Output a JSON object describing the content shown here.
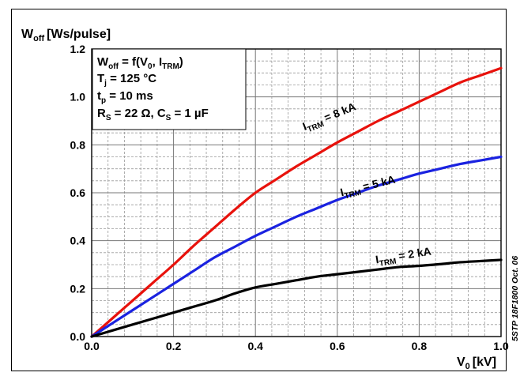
{
  "chart_data": {
    "type": "line",
    "title": "",
    "ylabel": "W",
    "ylabel_sub": "off",
    "ylabel_unit": "[Ws/pulse]",
    "xlabel": "V",
    "xlabel_sub": "0",
    "xlabel_unit": "[kV]",
    "xlim": [
      0.0,
      1.0
    ],
    "ylim": [
      0.0,
      1.2
    ],
    "x_ticks": [
      "0.0",
      "0.2",
      "0.4",
      "0.6",
      "0.8",
      "1.0"
    ],
    "y_ticks": [
      "0.0",
      "0.2",
      "0.4",
      "0.6",
      "0.8",
      "1.0",
      "1.2"
    ],
    "grid": true,
    "legend_box": {
      "line1": "W",
      "line1_sub": "off",
      "line1_rest": " = f(V",
      "line1_sub2": "0",
      "line1_rest2": ", I",
      "line1_sub3": "TRM",
      "line1_end": ")",
      "line2": "T",
      "line2_sub": "j",
      "line2_rest": " = 125 °C",
      "line3": "t",
      "line3_sub": "p",
      "line3_rest": " = 10 ms",
      "line4": "R",
      "line4_sub": "S",
      "line4_rest": " = 22 Ω, C",
      "line4_sub2": "S",
      "line4_rest2": " = 1 µF"
    },
    "watermark": "5STP 18F1800 Oct. 06",
    "series": [
      {
        "name": "I",
        "name_sub": "TRM",
        "name_rest": " = 8 kA",
        "color": "#e8120c",
        "x": [
          0.0,
          0.05,
          0.1,
          0.15,
          0.2,
          0.25,
          0.3,
          0.35,
          0.4,
          0.45,
          0.5,
          0.55,
          0.6,
          0.65,
          0.7,
          0.75,
          0.8,
          0.85,
          0.9,
          0.95,
          1.0
        ],
        "y": [
          0.0,
          0.075,
          0.15,
          0.225,
          0.3,
          0.38,
          0.455,
          0.53,
          0.6,
          0.655,
          0.71,
          0.76,
          0.81,
          0.855,
          0.9,
          0.94,
          0.98,
          1.02,
          1.06,
          1.09,
          1.12
        ]
      },
      {
        "name": "I",
        "name_sub": "TRM",
        "name_rest": " = 5 kA",
        "color": "#1a22e0",
        "x": [
          0.0,
          0.05,
          0.1,
          0.15,
          0.2,
          0.25,
          0.3,
          0.35,
          0.4,
          0.45,
          0.5,
          0.55,
          0.6,
          0.65,
          0.7,
          0.75,
          0.8,
          0.85,
          0.9,
          0.95,
          1.0
        ],
        "y": [
          0.0,
          0.055,
          0.11,
          0.165,
          0.22,
          0.275,
          0.33,
          0.375,
          0.42,
          0.46,
          0.5,
          0.535,
          0.57,
          0.6,
          0.63,
          0.655,
          0.68,
          0.7,
          0.72,
          0.735,
          0.75
        ]
      },
      {
        "name": "I",
        "name_sub": "TRM",
        "name_rest": " = 2 kA",
        "color": "#000000",
        "x": [
          0.0,
          0.05,
          0.1,
          0.15,
          0.2,
          0.25,
          0.3,
          0.35,
          0.4,
          0.45,
          0.5,
          0.55,
          0.6,
          0.65,
          0.7,
          0.75,
          0.8,
          0.85,
          0.9,
          0.95,
          1.0
        ],
        "y": [
          0.0,
          0.025,
          0.05,
          0.075,
          0.1,
          0.125,
          0.15,
          0.18,
          0.205,
          0.22,
          0.235,
          0.25,
          0.26,
          0.27,
          0.28,
          0.29,
          0.295,
          0.302,
          0.31,
          0.315,
          0.32
        ]
      }
    ]
  }
}
